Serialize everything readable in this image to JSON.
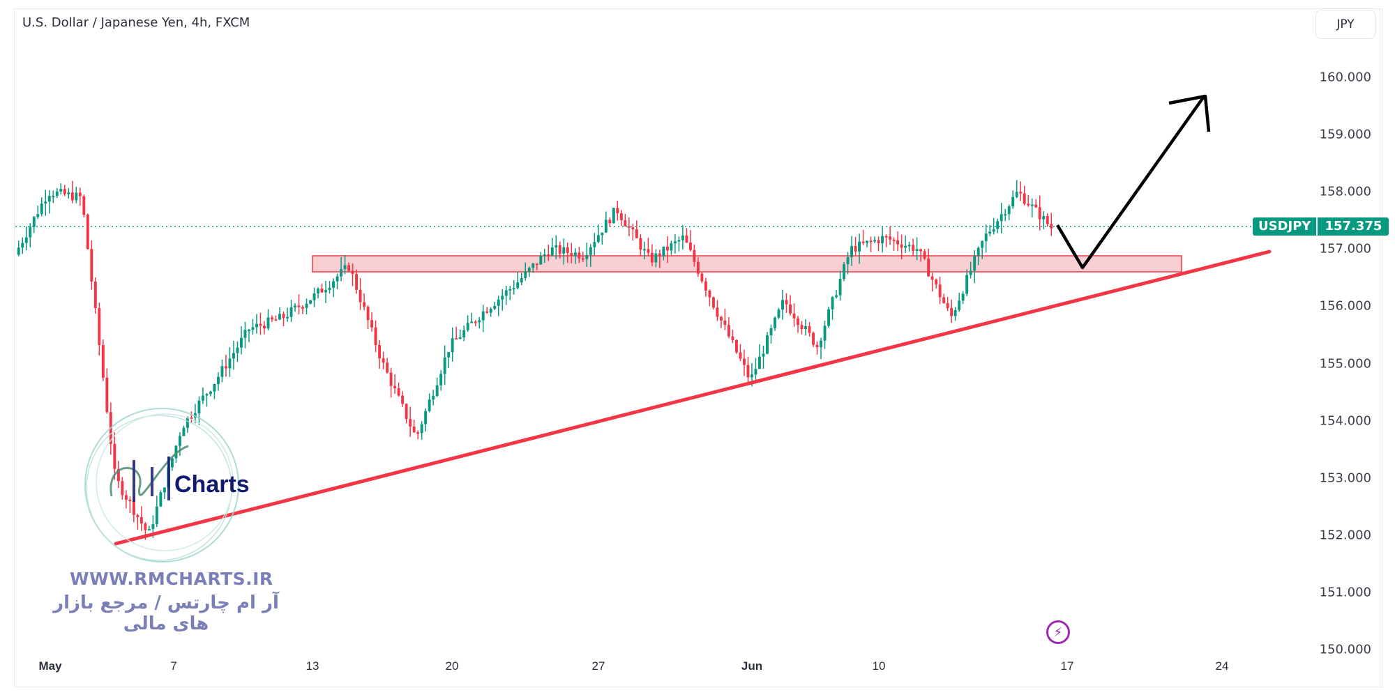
{
  "header": {
    "title": "U.S. Dollar / Japanese Yen, 4h, FXCM",
    "currency_button": "JPY"
  },
  "price_tag": {
    "symbol": "USDJPY",
    "value": "157.375"
  },
  "watermark": {
    "logo_text": "Charts",
    "url": "WWW.RMCHARTS.IR",
    "tagline_fa": "آر ام چارتس / مرجع بازار های مالی"
  },
  "icons": {
    "events": "lightning-bolt-icon"
  },
  "colors": {
    "up": "#089981",
    "down": "#f23645",
    "zone_fill": "#f8d0d4",
    "zone_border": "#f23645",
    "trendline": "#f23645",
    "arrow": "#000000",
    "last_price_line": "#089981"
  },
  "chart_data": {
    "type": "candlestick",
    "title": "U.S. Dollar / Japanese Yen, 4h, FXCM",
    "symbol": "USDJPY",
    "timeframe": "4h",
    "source": "FXCM",
    "last_price": 157.375,
    "ylabel": "JPY",
    "ylim": [
      149.9,
      160.6
    ],
    "y_ticks": [
      "160.000",
      "159.000",
      "158.000",
      "157.000",
      "156.000",
      "155.000",
      "154.000",
      "153.000",
      "152.000",
      "151.000",
      "150.000"
    ],
    "x_ticks": [
      "May",
      "7",
      "13",
      "20",
      "27",
      "Jun",
      "10",
      "17",
      "24"
    ],
    "grid": false,
    "approx_path": [
      {
        "date": "May 1",
        "price": 156.9
      },
      {
        "date": "May 1",
        "price": 158.0
      },
      {
        "date": "May 2",
        "price": 157.9
      },
      {
        "date": "May 2",
        "price": 153.0
      },
      {
        "date": "May 3",
        "price": 152.0
      },
      {
        "date": "May 4",
        "price": 153.9
      },
      {
        "date": "May 7",
        "price": 154.7
      },
      {
        "date": "May 8",
        "price": 155.6
      },
      {
        "date": "May 10",
        "price": 155.8
      },
      {
        "date": "May 13",
        "price": 156.2
      },
      {
        "date": "May 14",
        "price": 156.7
      },
      {
        "date": "May 15",
        "price": 155.0
      },
      {
        "date": "May 16",
        "price": 153.7
      },
      {
        "date": "May 17",
        "price": 155.3
      },
      {
        "date": "May 20",
        "price": 155.9
      },
      {
        "date": "May 22",
        "price": 156.4
      },
      {
        "date": "May 24",
        "price": 157.0
      },
      {
        "date": "May 27",
        "price": 156.9
      },
      {
        "date": "May 29",
        "price": 157.7
      },
      {
        "date": "May 31",
        "price": 156.8
      },
      {
        "date": "Jun 1",
        "price": 157.2
      },
      {
        "date": "Jun 3",
        "price": 155.9
      },
      {
        "date": "Jun 4",
        "price": 154.7
      },
      {
        "date": "Jun 6",
        "price": 156.1
      },
      {
        "date": "Jun 7",
        "price": 155.3
      },
      {
        "date": "Jun 9",
        "price": 157.0
      },
      {
        "date": "Jun 11",
        "price": 157.2
      },
      {
        "date": "Jun 12",
        "price": 157.0
      },
      {
        "date": "Jun 13",
        "price": 155.8
      },
      {
        "date": "Jun 14",
        "price": 157.2
      },
      {
        "date": "Jun 15",
        "price": 158.0
      },
      {
        "date": "Jun 16",
        "price": 157.375
      }
    ],
    "annotations": [
      {
        "type": "rectangle",
        "label": "resistance zone",
        "price_low": 156.6,
        "price_high": 156.9,
        "from": "May 13",
        "to": "Jun 22"
      },
      {
        "type": "trendline",
        "label": "ascending support",
        "from": {
          "date": "May 3",
          "price": 151.8
        },
        "to": {
          "date": "Jun 25",
          "price": 156.95
        }
      },
      {
        "type": "projection_arrow",
        "points": [
          {
            "date": "Jun 16",
            "price": 157.4
          },
          {
            "date": "Jun 17",
            "price": 156.7
          },
          {
            "date": "Jun 22",
            "price": 159.7
          }
        ]
      }
    ]
  }
}
